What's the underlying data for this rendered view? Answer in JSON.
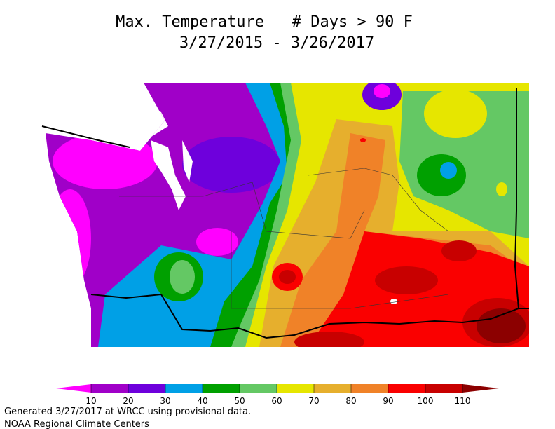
{
  "title": {
    "line1": "Max. Temperature   # Days > 90 F",
    "line2": "3/27/2015 - 3/26/2017"
  },
  "legend": {
    "ticks": [
      10,
      20,
      30,
      40,
      50,
      60,
      70,
      80,
      90,
      100,
      110
    ],
    "colors": [
      "#ff00ff",
      "#a000c8",
      "#6e00dc",
      "#00a0e6",
      "#00a000",
      "#64c864",
      "#e6e600",
      "#e6af2d",
      "#f08228",
      "#fa0000",
      "#c80000",
      "#8c0000"
    ]
  },
  "footer": {
    "line1": "Generated 3/27/2017 at WRCC using provisional data.",
    "line2": "NOAA Regional Climate Centers"
  }
}
